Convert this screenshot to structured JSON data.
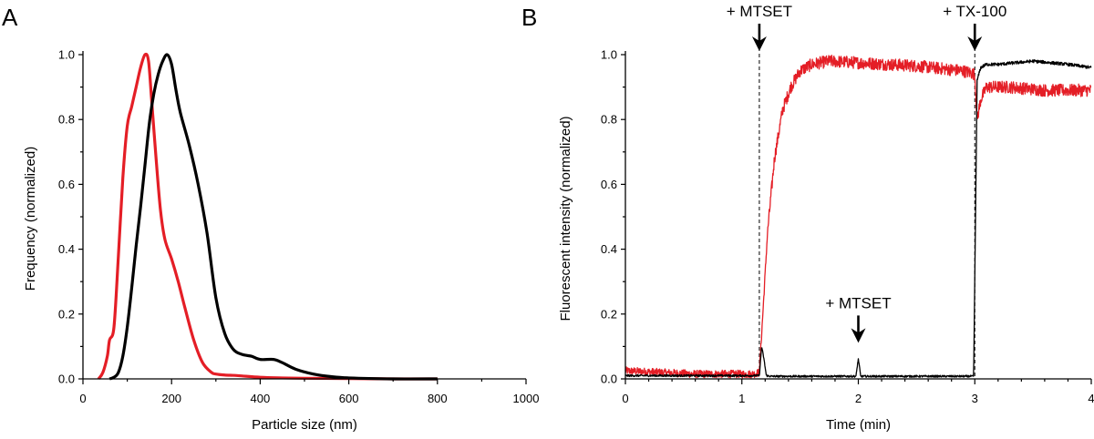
{
  "chart_data": [
    {
      "type": "line",
      "panel": "A",
      "xlabel": "Particle size (nm)",
      "ylabel": "Frequency (normalized)",
      "xlim": [
        0,
        1000
      ],
      "ylim": [
        0,
        1.0
      ],
      "xticks": [
        0,
        200,
        400,
        600,
        800,
        1000
      ],
      "yticks": [
        0.0,
        0.2,
        0.4,
        0.6,
        0.8,
        1.0
      ],
      "ytick_labels": [
        "0.0",
        "0.2",
        "0.4",
        "0.6",
        "0.8",
        "1.0"
      ],
      "series": [
        {
          "name": "red",
          "color": "#e41e26",
          "x": [
            35,
            45,
            55,
            60,
            70,
            80,
            90,
            100,
            110,
            120,
            130,
            140,
            148,
            155,
            165,
            175,
            185,
            200,
            215,
            230,
            250,
            270,
            290,
            300,
            320,
            350,
            400,
            450,
            500,
            600,
            700,
            800
          ],
          "y": [
            0.0,
            0.02,
            0.07,
            0.12,
            0.16,
            0.38,
            0.62,
            0.78,
            0.84,
            0.9,
            0.96,
            1.0,
            0.98,
            0.86,
            0.68,
            0.52,
            0.43,
            0.37,
            0.3,
            0.22,
            0.12,
            0.05,
            0.02,
            0.015,
            0.012,
            0.01,
            0.005,
            0.003,
            0.002,
            0.001,
            0.0,
            0.0
          ]
        },
        {
          "name": "black",
          "color": "#000000",
          "x": [
            60,
            70,
            80,
            90,
            100,
            110,
            120,
            130,
            140,
            150,
            160,
            170,
            180,
            190,
            200,
            210,
            220,
            240,
            260,
            280,
            300,
            320,
            340,
            360,
            380,
            400,
            430,
            450,
            480,
            520,
            560,
            600,
            700,
            800
          ],
          "y": [
            0.0,
            0.005,
            0.02,
            0.07,
            0.16,
            0.28,
            0.41,
            0.53,
            0.66,
            0.79,
            0.88,
            0.94,
            0.98,
            1.0,
            0.97,
            0.89,
            0.82,
            0.72,
            0.6,
            0.45,
            0.25,
            0.14,
            0.09,
            0.075,
            0.07,
            0.06,
            0.06,
            0.05,
            0.03,
            0.015,
            0.007,
            0.003,
            0.0,
            0.0
          ]
        }
      ]
    },
    {
      "type": "line",
      "panel": "B",
      "xlabel": "Time (min)",
      "ylabel": "Fluorescent intensity (normalized)",
      "xlim": [
        0,
        4
      ],
      "ylim": [
        0,
        1.0
      ],
      "xticks": [
        0,
        1,
        2,
        3,
        4
      ],
      "yticks": [
        0.0,
        0.2,
        0.4,
        0.6,
        0.8,
        1.0
      ],
      "ytick_labels": [
        "0.0",
        "0.2",
        "0.4",
        "0.6",
        "0.8",
        "1.0"
      ],
      "annotations": [
        {
          "text": "+ MTSET",
          "x": 1.15,
          "y": 1.0,
          "dashed_line": true
        },
        {
          "text": "+ TX-100",
          "x": 3.0,
          "y": 1.0,
          "dashed_line": true
        },
        {
          "text": "+ MTSET",
          "x": 2.0,
          "y": 0.1,
          "dashed_line": false
        }
      ],
      "series": [
        {
          "name": "red",
          "color": "#e41e26",
          "noise": 0.012,
          "x": [
            0,
            0.3,
            0.6,
            1.0,
            1.1,
            1.15,
            1.18,
            1.22,
            1.28,
            1.35,
            1.42,
            1.5,
            1.6,
            1.75,
            2.0,
            2.5,
            2.9,
            3.0,
            3.02,
            3.05,
            3.1,
            3.3,
            3.6,
            4.0
          ],
          "y": [
            0.025,
            0.02,
            0.015,
            0.015,
            0.015,
            0.02,
            0.2,
            0.45,
            0.68,
            0.83,
            0.9,
            0.95,
            0.97,
            0.98,
            0.975,
            0.965,
            0.95,
            0.94,
            0.8,
            0.86,
            0.9,
            0.9,
            0.89,
            0.89
          ]
        },
        {
          "name": "black",
          "color": "#000000",
          "noise": 0.003,
          "x": [
            0,
            1.0,
            1.15,
            1.17,
            1.19,
            1.21,
            1.25,
            1.5,
            1.98,
            1.995,
            2.0,
            2.005,
            2.02,
            2.5,
            2.99,
            3.02,
            3.05,
            3.1,
            3.2,
            3.5,
            3.8,
            4.0
          ],
          "y": [
            0.01,
            0.01,
            0.01,
            0.1,
            0.06,
            0.01,
            0.008,
            0.008,
            0.008,
            0.05,
            0.06,
            0.05,
            0.008,
            0.008,
            0.008,
            0.92,
            0.96,
            0.97,
            0.97,
            0.98,
            0.97,
            0.96
          ]
        }
      ]
    }
  ]
}
